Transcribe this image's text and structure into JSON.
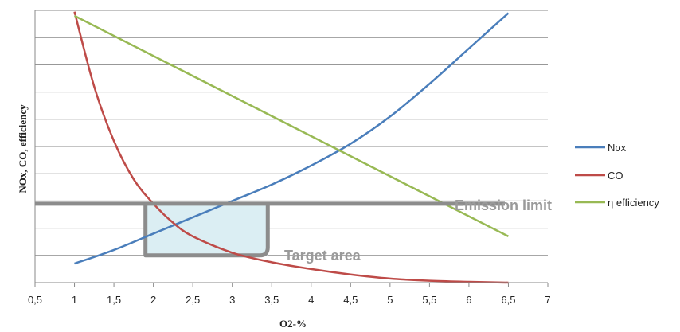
{
  "chart_data": {
    "type": "line",
    "title": "",
    "xlabel": "O2-%",
    "ylabel": "NOx, CO, efficiency",
    "xlim": [
      0.5,
      7
    ],
    "ylim": [
      0,
      10
    ],
    "x_ticks": [
      "0,5",
      "1",
      "1,5",
      "2",
      "2,5",
      "3",
      "3,5",
      "4",
      "4,5",
      "5",
      "5,5",
      "6",
      "6,5",
      "7"
    ],
    "x_tick_values": [
      0.5,
      1,
      1.5,
      2,
      2.5,
      3,
      3.5,
      4,
      4.5,
      5,
      5.5,
      6,
      6.5,
      7
    ],
    "y_gridlines": [
      1,
      2,
      3,
      4,
      5,
      6,
      7,
      8,
      9,
      10
    ],
    "y_ticks_labeled": false,
    "grid": true,
    "legend_position": "right",
    "series": [
      {
        "name": "Nox",
        "color": "#4a7ebb",
        "x": [
          1,
          1.5,
          2,
          2.5,
          3,
          3.5,
          4,
          4.5,
          5,
          5.5,
          6,
          6.5
        ],
        "y": [
          0.7,
          1.2,
          1.8,
          2.4,
          3.0,
          3.6,
          4.3,
          5.1,
          6.1,
          7.3,
          8.6,
          9.9
        ]
      },
      {
        "name": "CO",
        "color": "#be4b48",
        "x": [
          1,
          1.25,
          1.5,
          1.75,
          2,
          2.25,
          2.5,
          3,
          3.5,
          4,
          4.5,
          5,
          5.5,
          6,
          6.5
        ],
        "y": [
          9.95,
          7.2,
          5.2,
          3.8,
          2.9,
          2.2,
          1.7,
          1.1,
          0.75,
          0.5,
          0.3,
          0.15,
          0.07,
          0.03,
          0.0
        ]
      },
      {
        "name": "η efficiency",
        "color": "#98b954",
        "x": [
          1,
          6.5
        ],
        "y": [
          9.8,
          1.7
        ]
      }
    ],
    "emission_limit": {
      "label": "Emission limit",
      "y": 2.9,
      "color": "#8c8c8c"
    },
    "target_area": {
      "label": "Target area",
      "x_range": [
        1.9,
        3.45
      ],
      "y_range": [
        1.0,
        2.9
      ],
      "fill": "#dbeef3",
      "stroke": "#8c8c8c"
    }
  }
}
